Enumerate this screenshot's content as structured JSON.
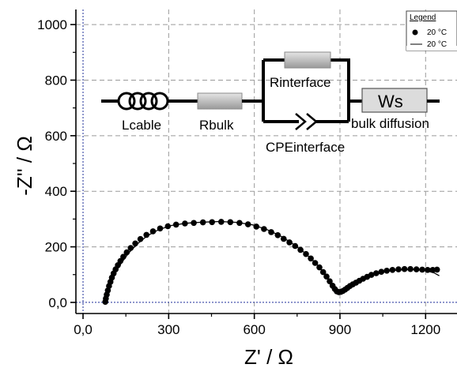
{
  "chart_data": {
    "type": "scatter",
    "xlabel": "Z' / Ω",
    "ylabel": "-Z'' / Ω",
    "xlim": [
      -25,
      1310
    ],
    "ylim": [
      -40,
      1060
    ],
    "xticks": [
      0,
      300,
      600,
      900,
      1200
    ],
    "xtick_labels": [
      "0,0",
      "300",
      "600",
      "900",
      "1200"
    ],
    "yticks": [
      0,
      200,
      400,
      600,
      800,
      1000
    ],
    "ytick_labels": [
      "0,0",
      "200",
      "400",
      "600",
      "800",
      "1000"
    ],
    "grid": true,
    "legend": {
      "title": "Legend",
      "position": "top-right",
      "entries": [
        "20 °C",
        "20 °C"
      ]
    },
    "series": [
      {
        "name": "20 °C",
        "kind": "markers",
        "points": [
          [
            78,
            2
          ],
          [
            80,
            14
          ],
          [
            83,
            28
          ],
          [
            87,
            43
          ],
          [
            91,
            59
          ],
          [
            96,
            74
          ],
          [
            101,
            89
          ],
          [
            107,
            104
          ],
          [
            114,
            119
          ],
          [
            122,
            134
          ],
          [
            131,
            149
          ],
          [
            141,
            164
          ],
          [
            153,
            180
          ],
          [
            167,
            196
          ],
          [
            183,
            212
          ],
          [
            201,
            228
          ],
          [
            222,
            243
          ],
          [
            245,
            256
          ],
          [
            270,
            266
          ],
          [
            297,
            274
          ],
          [
            326,
            280
          ],
          [
            357,
            284
          ],
          [
            388,
            286
          ],
          [
            420,
            288
          ],
          [
            452,
            289
          ],
          [
            484,
            290
          ],
          [
            516,
            289
          ],
          [
            548,
            286
          ],
          [
            578,
            281
          ],
          [
            607,
            273
          ],
          [
            634,
            264
          ],
          [
            659,
            253
          ],
          [
            682,
            242
          ],
          [
            703,
            229
          ],
          [
            723,
            216
          ],
          [
            743,
            203
          ],
          [
            762,
            189
          ],
          [
            781,
            174
          ],
          [
            798,
            158
          ],
          [
            813,
            142
          ],
          [
            828,
            126
          ],
          [
            841,
            109
          ],
          [
            853,
            93
          ],
          [
            864,
            76
          ],
          [
            874,
            60
          ],
          [
            882,
            48
          ],
          [
            889,
            40
          ],
          [
            896,
            37
          ],
          [
            903,
            38
          ],
          [
            910,
            41
          ],
          [
            918,
            46
          ],
          [
            926,
            52
          ],
          [
            935,
            59
          ],
          [
            945,
            65
          ],
          [
            956,
            71
          ],
          [
            968,
            78
          ],
          [
            981,
            85
          ],
          [
            995,
            92
          ],
          [
            1010,
            99
          ],
          [
            1027,
            105
          ],
          [
            1045,
            110
          ],
          [
            1064,
            114
          ],
          [
            1084,
            117
          ],
          [
            1105,
            119
          ],
          [
            1126,
            120
          ],
          [
            1147,
            120
          ],
          [
            1168,
            119
          ],
          [
            1188,
            118
          ],
          [
            1207,
            117
          ],
          [
            1225,
            117
          ],
          [
            1240,
            118
          ]
        ]
      },
      {
        "name": "20 °C",
        "kind": "line",
        "points": [
          [
            78,
            0
          ],
          [
            80,
            12
          ],
          [
            84,
            30
          ],
          [
            90,
            50
          ],
          [
            100,
            78
          ],
          [
            115,
            110
          ],
          [
            135,
            143
          ],
          [
            160,
            178
          ],
          [
            190,
            210
          ],
          [
            225,
            240
          ],
          [
            265,
            262
          ],
          [
            310,
            277
          ],
          [
            360,
            285
          ],
          [
            420,
            289
          ],
          [
            480,
            291
          ],
          [
            540,
            288
          ],
          [
            595,
            279
          ],
          [
            645,
            262
          ],
          [
            690,
            240
          ],
          [
            730,
            214
          ],
          [
            770,
            184
          ],
          [
            805,
            152
          ],
          [
            835,
            118
          ],
          [
            860,
            84
          ],
          [
            880,
            54
          ],
          [
            893,
            40
          ],
          [
            903,
            38
          ],
          [
            915,
            43
          ],
          [
            935,
            56
          ],
          [
            960,
            70
          ],
          [
            990,
            86
          ],
          [
            1025,
            102
          ],
          [
            1065,
            112
          ],
          [
            1110,
            117
          ],
          [
            1155,
            118
          ],
          [
            1200,
            115
          ],
          [
            1230,
            106
          ],
          [
            1248,
            96
          ]
        ]
      }
    ],
    "circuit": {
      "inductor": "Lcable",
      "bulk_resistor": "Rbulk",
      "interface_resistor": "Rinterface",
      "cpe": "CPEinterface",
      "warburg_symbol": "Ws",
      "warburg_label": "bulk diffusion"
    }
  }
}
